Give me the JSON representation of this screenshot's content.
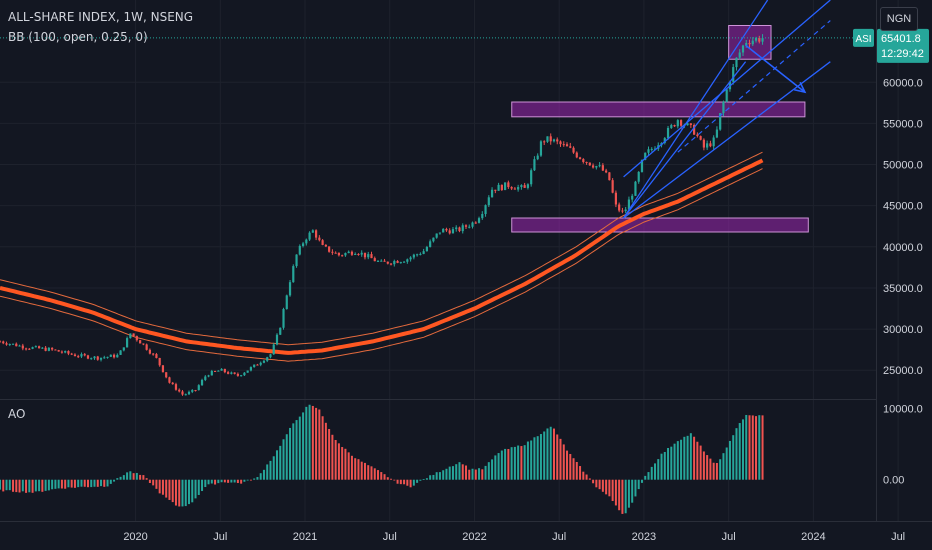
{
  "header": {
    "symbol_line": "ALL-SHARE INDEX, 1W, NSENG",
    "indicator_line": "BB (100, open, 0.25, 0)",
    "currency_button": "NGN"
  },
  "price_tag": {
    "ticker": "ASI",
    "value": "65401.8",
    "countdown": "12:29:42",
    "color": "#26a69a"
  },
  "colors": {
    "background": "#131722",
    "up": "#26a69a",
    "down": "#ef5350",
    "bb_basis": "#ff5722",
    "bb_band": "#e46a3d",
    "zone": "#9c27b0",
    "drawing": "#2962ff",
    "ao_up": "#26a69a",
    "ao_down": "#ef5350"
  },
  "chart_data": [
    {
      "type": "candlestick",
      "title": "ALL-SHARE INDEX, 1W, NSENG",
      "ylim": [
        21500,
        70000
      ],
      "xlim": [
        2019.2,
        2024.7
      ],
      "y_ticks": [
        "25000.0",
        "30000.0",
        "35000.0",
        "40000.0",
        "45000.0",
        "50000.0",
        "55000.0",
        "60000.0"
      ],
      "x_ticks": [
        {
          "label": "2020",
          "x": 2020.0
        },
        {
          "label": "Jul",
          "x": 2020.5
        },
        {
          "label": "2021",
          "x": 2021.0
        },
        {
          "label": "Jul",
          "x": 2021.5
        },
        {
          "label": "2022",
          "x": 2022.0
        },
        {
          "label": "Jul",
          "x": 2022.5
        },
        {
          "label": "2023",
          "x": 2023.0
        },
        {
          "label": "Jul",
          "x": 2023.5
        },
        {
          "label": "2024",
          "x": 2024.0
        },
        {
          "label": "Jul",
          "x": 2024.5
        }
      ],
      "close_path": [
        [
          2019.2,
          28500
        ],
        [
          2019.35,
          27800
        ],
        [
          2019.5,
          27500
        ],
        [
          2019.65,
          26800
        ],
        [
          2019.78,
          26500
        ],
        [
          2019.9,
          26800
        ],
        [
          2019.97,
          29500
        ],
        [
          2020.05,
          28000
        ],
        [
          2020.12,
          26500
        ],
        [
          2020.2,
          23500
        ],
        [
          2020.28,
          22000
        ],
        [
          2020.35,
          22500
        ],
        [
          2020.42,
          24500
        ],
        [
          2020.5,
          25000
        ],
        [
          2020.6,
          24300
        ],
        [
          2020.7,
          25500
        ],
        [
          2020.8,
          27000
        ],
        [
          2020.85,
          30000
        ],
        [
          2020.9,
          35000
        ],
        [
          2020.95,
          39000
        ],
        [
          2021.0,
          41000
        ],
        [
          2021.05,
          42000
        ],
        [
          2021.1,
          40000
        ],
        [
          2021.2,
          39000
        ],
        [
          2021.3,
          39500
        ],
        [
          2021.45,
          38000
        ],
        [
          2021.6,
          38500
        ],
        [
          2021.7,
          39500
        ],
        [
          2021.8,
          42000
        ],
        [
          2021.9,
          42000
        ],
        [
          2022.0,
          43000
        ],
        [
          2022.05,
          44500
        ],
        [
          2022.1,
          47000
        ],
        [
          2022.2,
          47500
        ],
        [
          2022.3,
          47000
        ],
        [
          2022.35,
          50000
        ],
        [
          2022.4,
          53000
        ],
        [
          2022.45,
          53000
        ],
        [
          2022.55,
          52000
        ],
        [
          2022.65,
          50500
        ],
        [
          2022.75,
          49500
        ],
        [
          2022.8,
          48000
        ],
        [
          2022.83,
          45000
        ],
        [
          2022.88,
          44000
        ],
        [
          2022.95,
          47500
        ],
        [
          2023.0,
          51000
        ],
        [
          2023.1,
          53000
        ],
        [
          2023.2,
          55500
        ],
        [
          2023.3,
          54000
        ],
        [
          2023.35,
          52000
        ],
        [
          2023.42,
          53000
        ],
        [
          2023.45,
          56000
        ],
        [
          2023.5,
          60000
        ],
        [
          2023.55,
          63000
        ],
        [
          2023.6,
          65000
        ],
        [
          2023.7,
          65400
        ]
      ],
      "bb_basis_path": [
        [
          2019.2,
          35000
        ],
        [
          2019.5,
          33500
        ],
        [
          2019.75,
          32000
        ],
        [
          2020.0,
          30000
        ],
        [
          2020.3,
          28500
        ],
        [
          2020.6,
          27700
        ],
        [
          2020.9,
          27100
        ],
        [
          2021.1,
          27400
        ],
        [
          2021.4,
          28500
        ],
        [
          2021.7,
          30000
        ],
        [
          2022.0,
          32500
        ],
        [
          2022.3,
          35500
        ],
        [
          2022.6,
          39000
        ],
        [
          2022.85,
          42500
        ],
        [
          2023.0,
          44000
        ],
        [
          2023.2,
          45500
        ],
        [
          2023.4,
          47500
        ],
        [
          2023.6,
          49500
        ],
        [
          2023.7,
          50500
        ]
      ],
      "bb_band_offset": 1000,
      "zones": [
        {
          "x0": 2022.22,
          "x1": 2023.95,
          "y0": 55800,
          "y1": 57600
        },
        {
          "x0": 2022.22,
          "x1": 2023.97,
          "y0": 41800,
          "y1": 43500
        },
        {
          "x0": 2023.5,
          "x1": 2023.75,
          "y0": 62800,
          "y1": 66900
        }
      ],
      "trend_lines": [
        {
          "x0": 2022.88,
          "y0": 43500,
          "x1": 2023.6,
          "y1": 62500
        },
        {
          "x0": 2022.88,
          "y0": 43500,
          "x1": 2023.73,
          "y1": 70000
        },
        {
          "x0": 2022.88,
          "y0": 48500,
          "x1": 2024.1,
          "y1": 70000
        },
        {
          "x0": 2022.88,
          "y0": 43500,
          "x1": 2024.1,
          "y1": 62500
        }
      ],
      "dashed_lines": [
        {
          "x0": 2023.2,
          "y0": 51500,
          "x1": 2024.1,
          "y1": 67500
        }
      ],
      "arrows": [
        {
          "x0": 2023.6,
          "y0": 64500,
          "x1": 2023.95,
          "y1": 58800
        }
      ]
    },
    {
      "type": "bar",
      "title": "AO",
      "ylim": [
        -5800,
        11200
      ],
      "y_ticks": [
        "10000.0",
        "0.00"
      ],
      "keyframes": [
        [
          2019.2,
          -1500
        ],
        [
          2019.4,
          -1800
        ],
        [
          2019.55,
          -1200
        ],
        [
          2019.7,
          -1000
        ],
        [
          2019.83,
          -900
        ],
        [
          2019.96,
          1200
        ],
        [
          2020.05,
          500
        ],
        [
          2020.15,
          -2000
        ],
        [
          2020.25,
          -3800
        ],
        [
          2020.32,
          -3500
        ],
        [
          2020.42,
          -800
        ],
        [
          2020.52,
          -300
        ],
        [
          2020.62,
          -500
        ],
        [
          2020.72,
          300
        ],
        [
          2020.82,
          3500
        ],
        [
          2020.92,
          7500
        ],
        [
          2021.02,
          10500
        ],
        [
          2021.08,
          10000
        ],
        [
          2021.18,
          5500
        ],
        [
          2021.3,
          3000
        ],
        [
          2021.45,
          1000
        ],
        [
          2021.55,
          -500
        ],
        [
          2021.62,
          -1000
        ],
        [
          2021.72,
          300
        ],
        [
          2021.85,
          1800
        ],
        [
          2021.92,
          2500
        ],
        [
          2021.97,
          1500
        ],
        [
          2022.05,
          1500
        ],
        [
          2022.15,
          4000
        ],
        [
          2022.3,
          5000
        ],
        [
          2022.42,
          7000
        ],
        [
          2022.46,
          7500
        ],
        [
          2022.55,
          4000
        ],
        [
          2022.65,
          1000
        ],
        [
          2022.72,
          -1000
        ],
        [
          2022.8,
          -2500
        ],
        [
          2022.88,
          -5000
        ],
        [
          2022.94,
          -3000
        ],
        [
          2023.0,
          300
        ],
        [
          2023.1,
          3500
        ],
        [
          2023.2,
          5500
        ],
        [
          2023.28,
          6500
        ],
        [
          2023.34,
          4500
        ],
        [
          2023.42,
          2000
        ],
        [
          2023.48,
          4000
        ],
        [
          2023.55,
          7500
        ],
        [
          2023.6,
          9000
        ],
        [
          2023.7,
          9000
        ]
      ]
    }
  ]
}
